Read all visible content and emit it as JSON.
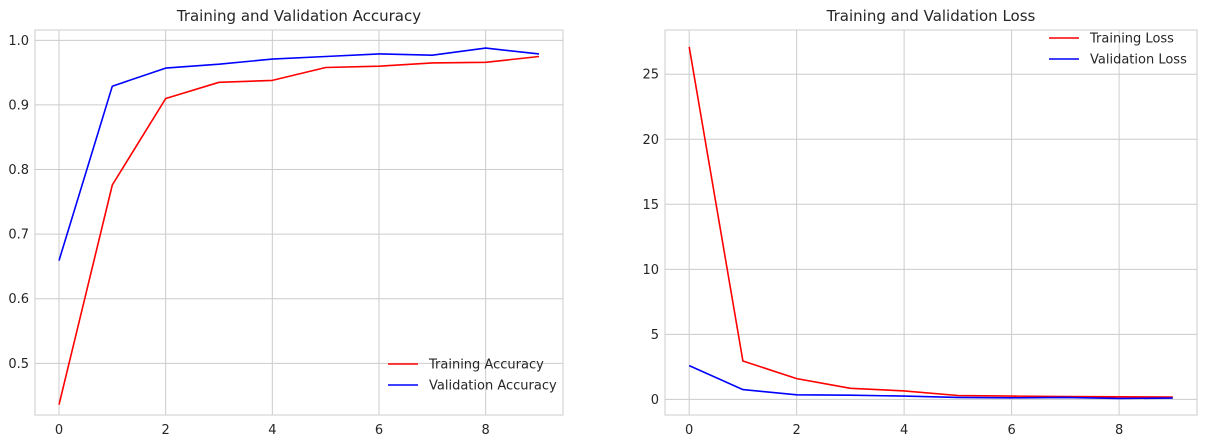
{
  "chart_data": [
    {
      "type": "line",
      "title": "Training and Validation Accuracy",
      "xlabel": "",
      "ylabel": "",
      "x": [
        0,
        1,
        2,
        3,
        4,
        5,
        6,
        7,
        8,
        9
      ],
      "xlim": [
        -0.45,
        9.45
      ],
      "ylim": [
        0.42,
        1.016
      ],
      "xticks": [
        0,
        2,
        4,
        6,
        8
      ],
      "yticks": [
        0.5,
        0.6,
        0.7,
        0.8,
        0.9,
        1.0
      ],
      "ytick_labels": [
        "0.5",
        "0.6",
        "0.7",
        "0.8",
        "0.9",
        "1.0"
      ],
      "grid": true,
      "legend_position": "lower-right",
      "series": [
        {
          "name": "Training Accuracy",
          "color": "#ff0000",
          "values": [
            0.436,
            0.776,
            0.91,
            0.935,
            0.938,
            0.958,
            0.96,
            0.965,
            0.966,
            0.975
          ]
        },
        {
          "name": "Validation Accuracy",
          "color": "#0000ff",
          "values": [
            0.659,
            0.929,
            0.957,
            0.963,
            0.971,
            0.975,
            0.979,
            0.977,
            0.988,
            0.979
          ]
        }
      ]
    },
    {
      "type": "line",
      "title": "Training and Validation Loss",
      "xlabel": "",
      "ylabel": "",
      "x": [
        0,
        1,
        2,
        3,
        4,
        5,
        6,
        7,
        8,
        9
      ],
      "xlim": [
        -0.45,
        9.45
      ],
      "ylim": [
        -1.2,
        28.4
      ],
      "xticks": [
        0,
        2,
        4,
        6,
        8
      ],
      "yticks": [
        0,
        5,
        10,
        15,
        20,
        25
      ],
      "ytick_labels": [
        "0",
        "5",
        "10",
        "15",
        "20",
        "25"
      ],
      "grid": true,
      "legend_position": "upper-right",
      "series": [
        {
          "name": "Training Loss",
          "color": "#ff0000",
          "values": [
            27.1,
            2.95,
            1.6,
            0.85,
            0.65,
            0.3,
            0.25,
            0.22,
            0.2,
            0.18
          ]
        },
        {
          "name": "Validation Loss",
          "color": "#0000ff",
          "values": [
            2.6,
            0.75,
            0.35,
            0.32,
            0.25,
            0.15,
            0.12,
            0.15,
            0.08,
            0.1
          ]
        }
      ]
    }
  ]
}
